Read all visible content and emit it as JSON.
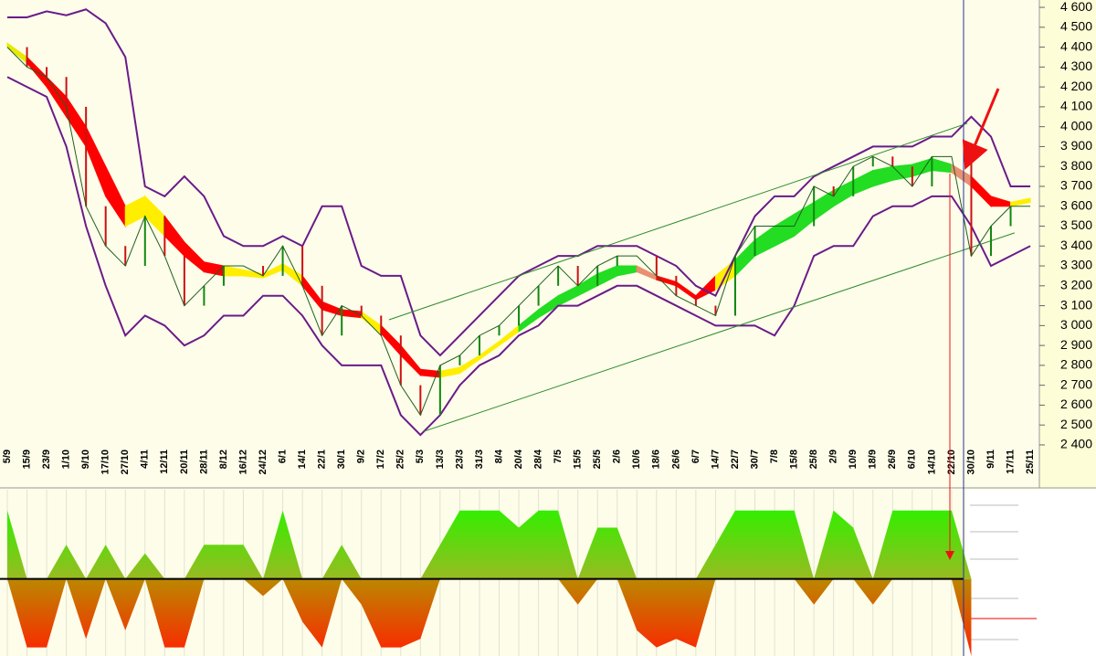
{
  "chart_data": {
    "type": "stock",
    "categories": [
      "5/9",
      "15/9",
      "23/9",
      "1/10",
      "9/10",
      "17/10",
      "27/10",
      "4/11",
      "12/11",
      "20/11",
      "28/11",
      "8/12",
      "16/12",
      "24/12",
      "6/1",
      "14/1",
      "22/1",
      "30/1",
      "9/2",
      "17/2",
      "25/2",
      "5/3",
      "13/3",
      "23/3",
      "31/3",
      "8/4",
      "20/4",
      "28/4",
      "7/5",
      "15/5",
      "25/5",
      "2/6",
      "10/6",
      "18/6",
      "26/6",
      "6/7",
      "14/7",
      "22/7",
      "30/7",
      "7/8",
      "15/8",
      "25/8",
      "2/9",
      "10/9",
      "18/9",
      "26/9",
      "6/10",
      "14/10",
      "22/10",
      "30/10",
      "9/11",
      "17/11",
      "25/11"
    ],
    "ylim": [
      2386,
      4637
    ],
    "yticks": [
      {
        "value": 4600,
        "label": "4 600"
      },
      {
        "value": 4500,
        "label": "4 500"
      },
      {
        "value": 4400,
        "label": "4 400"
      },
      {
        "value": 4300,
        "label": "4 300"
      },
      {
        "value": 4200,
        "label": "4 200"
      },
      {
        "value": 4100,
        "label": "4 100"
      },
      {
        "value": 4000,
        "label": "4 000"
      },
      {
        "value": 3900,
        "label": "3 900"
      },
      {
        "value": 3800,
        "label": "3 800"
      },
      {
        "value": 3700,
        "label": "3 700"
      },
      {
        "value": 3600,
        "label": "3 600"
      },
      {
        "value": 3500,
        "label": "3 500"
      },
      {
        "value": 3400,
        "label": "3 400"
      },
      {
        "value": 3300,
        "label": "3 300"
      },
      {
        "value": 3200,
        "label": "3 200"
      },
      {
        "value": 3100,
        "label": "3 100"
      },
      {
        "value": 3000,
        "label": "3 000"
      },
      {
        "value": 2900,
        "label": "2 900"
      },
      {
        "value": 2800,
        "label": "2 800"
      },
      {
        "value": 2700,
        "label": "2 700"
      },
      {
        "value": 2600,
        "label": "2 600"
      },
      {
        "value": 2500,
        "label": "2 500"
      },
      {
        "value": 2400,
        "label": "2 400"
      }
    ],
    "close": [
      4400,
      4300,
      4250,
      4100,
      3600,
      3400,
      3300,
      3550,
      3350,
      3100,
      3200,
      3300,
      3300,
      3250,
      3400,
      3200,
      2950,
      3100,
      3050,
      2950,
      2700,
      2550,
      2800,
      2850,
      2950,
      3000,
      3100,
      3200,
      3300,
      3200,
      3300,
      3350,
      3350,
      3250,
      3150,
      3100,
      3050,
      3350,
      3500,
      3500,
      3500,
      3700,
      3650,
      3800,
      3850,
      3800,
      3700,
      3850,
      3850,
      3350,
      3500,
      3600,
      3600
    ],
    "close_color": "#1f5f1f",
    "upper_band": [
      4550,
      4550,
      4580,
      4560,
      4590,
      4520,
      4350,
      3700,
      3650,
      3750,
      3650,
      3450,
      3400,
      3400,
      3450,
      3400,
      3600,
      3600,
      3300,
      3250,
      3250,
      2950,
      2850,
      2950,
      3050,
      3150,
      3250,
      3300,
      3350,
      3350,
      3400,
      3400,
      3400,
      3350,
      3300,
      3200,
      3150,
      3350,
      3550,
      3650,
      3650,
      3750,
      3800,
      3850,
      3900,
      3900,
      3900,
      3950,
      3950,
      4050,
      3950,
      3700,
      3700
    ],
    "lower_band": [
      4250,
      4200,
      4150,
      3900,
      3500,
      3200,
      2950,
      3050,
      3000,
      2900,
      2950,
      3050,
      3050,
      3150,
      3150,
      3050,
      2900,
      2800,
      2800,
      2800,
      2550,
      2450,
      2550,
      2700,
      2800,
      2850,
      2950,
      3000,
      3100,
      3100,
      3150,
      3200,
      3200,
      3150,
      3100,
      3050,
      3000,
      3000,
      3000,
      2950,
      3100,
      3350,
      3400,
      3400,
      3550,
      3600,
      3600,
      3650,
      3650,
      3500,
      3300,
      3350,
      3400
    ],
    "band_color": "#6a1b8a",
    "ma_fast": [
      4420,
      4350,
      4250,
      4150,
      4000,
      3800,
      3600,
      3650,
      3550,
      3420,
      3320,
      3300,
      3280,
      3260,
      3310,
      3250,
      3120,
      3080,
      3070,
      3000,
      2900,
      2780,
      2770,
      2790,
      2850,
      2920,
      3000,
      3080,
      3150,
      3200,
      3260,
      3300,
      3300,
      3250,
      3220,
      3150,
      3250,
      3330,
      3430,
      3500,
      3560,
      3620,
      3680,
      3730,
      3780,
      3800,
      3810,
      3840,
      3810,
      3750,
      3650,
      3620,
      3640
    ],
    "ma_slow": [
      4400,
      4320,
      4200,
      4050,
      3900,
      3650,
      3500,
      3550,
      3450,
      3350,
      3270,
      3250,
      3250,
      3240,
      3280,
      3200,
      3080,
      3050,
      3040,
      2960,
      2850,
      2750,
      2740,
      2760,
      2830,
      2900,
      2970,
      3040,
      3100,
      3150,
      3200,
      3250,
      3270,
      3230,
      3200,
      3130,
      3180,
      3250,
      3350,
      3400,
      3450,
      3530,
      3600,
      3660,
      3700,
      3730,
      3750,
      3780,
      3770,
      3700,
      3600,
      3600,
      3620
    ],
    "ribbon_colors": [
      "#e8e800",
      "#ff0000",
      "#ff0000",
      "#ff0000",
      "#ff0000",
      "#ff0000",
      "#ffee00",
      "#ffee00",
      "#ff0000",
      "#ff0000",
      "#ff0000",
      "#ffee00",
      "#ffee00",
      "#ffee00",
      "#ffee00",
      "#ff0000",
      "#ff0000",
      "#ff0000",
      "#ffee00",
      "#ff0000",
      "#ff0000",
      "#ff0000",
      "#ffee00",
      "#ffee00",
      "#ffee00",
      "#ffee00",
      "#22dd22",
      "#22dd22",
      "#22dd22",
      "#22dd22",
      "#22dd22",
      "#22dd22",
      "#e89070",
      "#ff0000",
      "#ff0000",
      "#ff0000",
      "#ffee00",
      "#22dd22",
      "#22dd22",
      "#22dd22",
      "#22dd22",
      "#22dd22",
      "#22dd22",
      "#22dd22",
      "#22dd22",
      "#22dd22",
      "#22dd22",
      "#22dd22",
      "#e89070",
      "#ff0000",
      "#ff0000",
      "#ffee00",
      "#ffee00"
    ],
    "channel_upper": {
      "x": [
        19.4,
        48.8
      ],
      "values": [
        3029,
        4017
      ]
    },
    "channel_lower": {
      "x": [
        21.2,
        51.2
      ],
      "values": [
        2469,
        3466
      ]
    },
    "channel_color": "#2e8b2e",
    "oscillator": {
      "ylim": [
        -0.9,
        1
      ],
      "values": [
        0.8,
        -0.8,
        -0.8,
        0.4,
        -0.7,
        0.4,
        -0.6,
        0.3,
        -0.8,
        -0.8,
        0.4,
        0.4,
        0.4,
        -0.2,
        0.8,
        -0.5,
        -0.8,
        0.4,
        -0.3,
        -0.8,
        -0.8,
        -0.7,
        0.4,
        0.8,
        0.8,
        0.8,
        0.6,
        0.8,
        0.8,
        -0.3,
        0.6,
        0.6,
        -0.6,
        -0.8,
        -0.7,
        -0.8,
        0.4,
        0.8,
        0.8,
        0.8,
        0.8,
        -0.3,
        0.8,
        0.6,
        -0.3,
        0.8,
        0.8,
        0.8,
        0.8,
        -0.9,
        null,
        null,
        null
      ]
    }
  }
}
